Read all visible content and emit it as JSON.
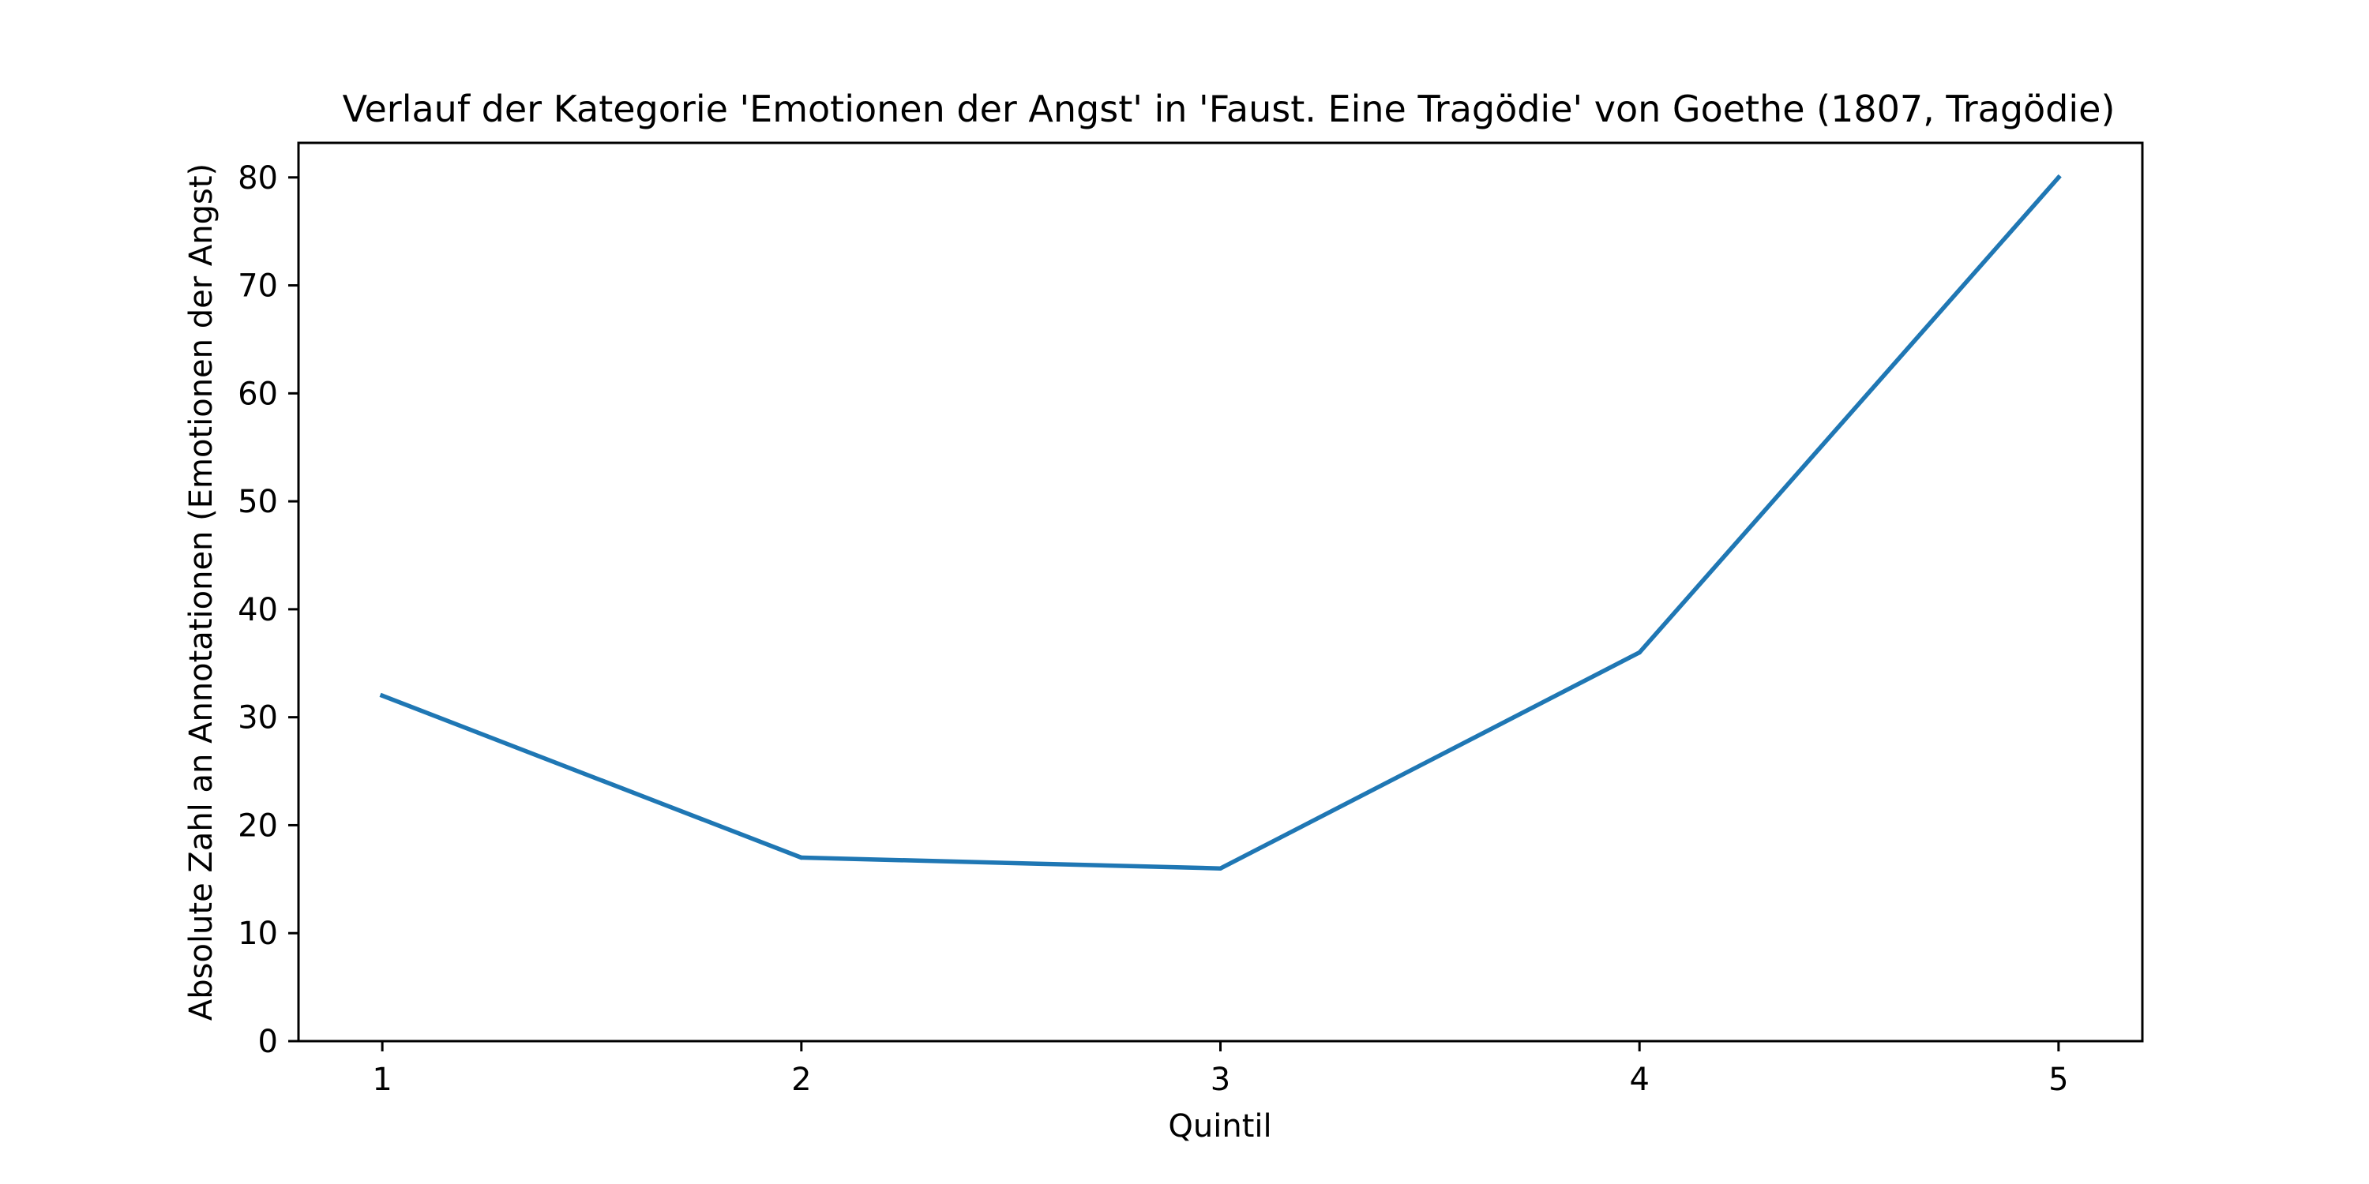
{
  "chart_data": {
    "type": "line",
    "title": "Verlauf der Kategorie 'Emotionen der Angst' in 'Faust. Eine Tragödie' von Goethe (1807, Tragödie)",
    "xlabel": "Quintil",
    "ylabel": "Absolute Zahl an Annotationen (Emotionen der Angst)",
    "x": [
      1,
      2,
      3,
      4,
      5
    ],
    "x_ticks": [
      "1",
      "2",
      "3",
      "4",
      "5"
    ],
    "xlim": [
      0.8,
      5.2
    ],
    "ylim": [
      0,
      83.2
    ],
    "y_ticks": [
      "0",
      "10",
      "20",
      "30",
      "40",
      "50",
      "60",
      "70",
      "80"
    ],
    "series": [
      {
        "values": [
          32,
          17,
          16,
          36,
          80
        ],
        "color": "#1f77b4"
      }
    ],
    "grid": false,
    "legend": "none"
  }
}
